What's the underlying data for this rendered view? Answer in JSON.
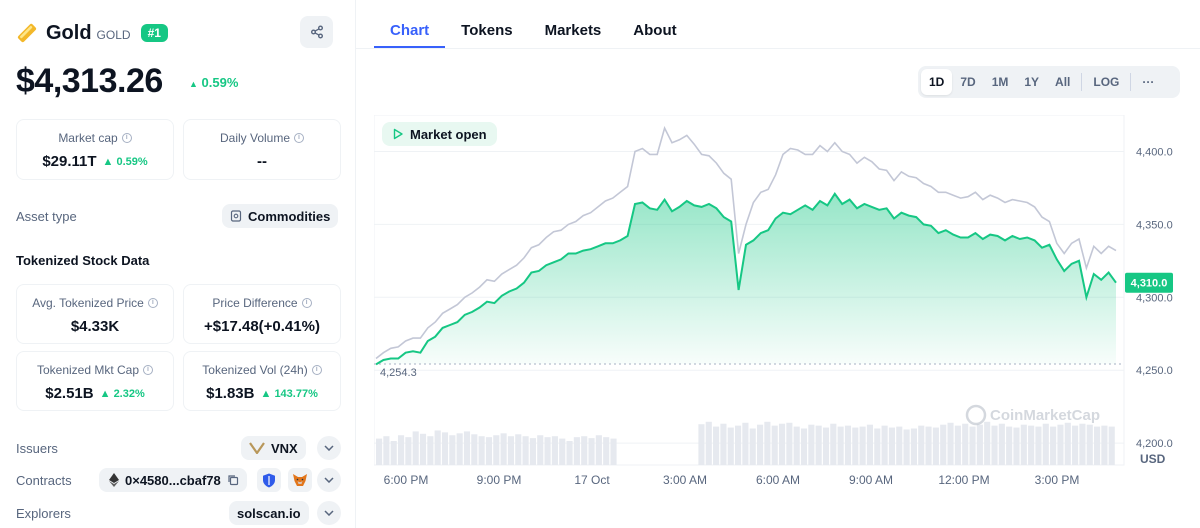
{
  "asset": {
    "name": "Gold",
    "symbol": "GOLD",
    "rank": "#1",
    "price": "$4,313.26",
    "price_change": "0.59%"
  },
  "stats": {
    "market_cap": {
      "label": "Market cap",
      "value": "$29.11T",
      "change": "0.59%"
    },
    "daily_volume": {
      "label": "Daily Volume",
      "value": "--"
    }
  },
  "asset_type": {
    "label": "Asset type",
    "value": "Commodities"
  },
  "tokenized": {
    "title": "Tokenized Stock Data",
    "avg_price": {
      "label": "Avg. Tokenized Price",
      "value": "$4.33K"
    },
    "price_diff": {
      "label": "Price Difference",
      "value": "+$17.48(+0.41%)"
    },
    "mkt_cap": {
      "label": "Tokenized Mkt Cap",
      "value": "$2.51B",
      "change": "2.32%"
    },
    "vol": {
      "label": "Tokenized Vol (24h)",
      "value": "$1.83B",
      "change": "143.77%"
    }
  },
  "issuers": {
    "label": "Issuers",
    "value": "VNX"
  },
  "contracts": {
    "label": "Contracts",
    "value": "0×4580...cbaf78"
  },
  "explorers": {
    "label": "Explorers",
    "value": "solscan.io"
  },
  "tabs": [
    "Chart",
    "Tokens",
    "Markets",
    "About"
  ],
  "ranges": [
    "1D",
    "7D",
    "1M",
    "1Y",
    "All",
    "LOG",
    "···"
  ],
  "market_status": "Market open",
  "watermark": "CoinMarketCap",
  "colors": {
    "up": "#16c784",
    "accent": "#3861fb",
    "compare_line": "#c3c7d6"
  },
  "chart_data": {
    "type": "line",
    "x_ticks": [
      "6:00 PM",
      "9:00 PM",
      "17 Oct",
      "3:00 AM",
      "6:00 AM",
      "9:00 AM",
      "12:00 PM",
      "3:00 PM"
    ],
    "y_ticks": [
      4200,
      4250,
      4300,
      4350,
      4400
    ],
    "y_tick_labels": [
      "4,200.0",
      "4,250.0",
      "4,300.0",
      "4,350.0",
      "4,400.0"
    ],
    "ylim": [
      4185,
      4425
    ],
    "ylabel": "USD",
    "open_label": "4,254.3",
    "open_value": 4254.3,
    "last_value_label": "4,310.0",
    "last_value": 4310.0,
    "series": [
      {
        "color": "#16c784",
        "x": [
          0,
          0.01,
          0.02,
          0.03,
          0.04,
          0.05,
          0.06,
          0.07,
          0.08,
          0.09,
          0.1,
          0.11,
          0.12,
          0.13,
          0.14,
          0.15,
          0.16,
          0.17,
          0.18,
          0.19,
          0.2,
          0.21,
          0.22,
          0.23,
          0.24,
          0.25,
          0.26,
          0.27,
          0.28,
          0.29,
          0.3,
          0.31,
          0.32,
          0.33,
          0.34,
          0.35,
          0.36,
          0.37,
          0.38,
          0.39,
          0.4,
          0.41,
          0.42,
          0.43,
          0.44,
          0.45,
          0.46,
          0.47,
          0.48,
          0.49,
          0.5,
          0.51,
          0.52,
          0.53,
          0.54,
          0.55,
          0.56,
          0.57,
          0.58,
          0.59,
          0.6,
          0.61,
          0.62,
          0.63,
          0.64,
          0.65,
          0.66,
          0.67,
          0.68,
          0.69,
          0.7,
          0.71,
          0.72,
          0.73,
          0.74,
          0.75,
          0.76,
          0.77,
          0.78,
          0.79,
          0.8,
          0.81,
          0.82,
          0.83,
          0.84,
          0.85,
          0.86,
          0.87,
          0.88,
          0.89,
          0.9,
          0.91,
          0.92,
          0.93,
          0.94,
          0.95,
          0.96,
          0.97,
          0.98,
          0.99,
          1.0
        ],
        "values": [
          4254,
          4257,
          4258,
          4258,
          4262,
          4263,
          4262,
          4270,
          4273,
          4279,
          4281,
          4283,
          4288,
          4290,
          4293,
          4297,
          4296,
          4301,
          4304,
          4306,
          4310,
          4317,
          4318,
          4322,
          4324,
          4326,
          4330,
          4330,
          4332,
          4333,
          4335,
          4337,
          4337,
          4339,
          4342,
          4364,
          4365,
          4361,
          4360,
          4367,
          4359,
          4362,
          4366,
          4363,
          4362,
          4364,
          4361,
          4355,
          4352,
          4305,
          4336,
          4339,
          4344,
          4346,
          4354,
          4358,
          4357,
          4360,
          4363,
          4360,
          4366,
          4363,
          4371,
          4364,
          4367,
          4361,
          4364,
          4362,
          4360,
          4361,
          4354,
          4358,
          4356,
          4355,
          4350,
          4349,
          4344,
          4346,
          4343,
          4341,
          4341,
          4344,
          4340,
          4343,
          4342,
          4339,
          4342,
          4340,
          4341,
          4339,
          4334,
          4336,
          4326,
          4318,
          4323,
          4325,
          4300,
          4316,
          4312,
          4317,
          4310
        ]
      },
      {
        "color": "#c3c7d6",
        "x": [
          0,
          0.01,
          0.02,
          0.03,
          0.04,
          0.05,
          0.06,
          0.07,
          0.08,
          0.09,
          0.1,
          0.11,
          0.12,
          0.13,
          0.14,
          0.15,
          0.16,
          0.17,
          0.18,
          0.19,
          0.2,
          0.21,
          0.22,
          0.23,
          0.24,
          0.25,
          0.26,
          0.27,
          0.28,
          0.29,
          0.3,
          0.31,
          0.32,
          0.33,
          0.34,
          0.35,
          0.36,
          0.37,
          0.38,
          0.39,
          0.4,
          0.41,
          0.42,
          0.43,
          0.44,
          0.45,
          0.46,
          0.47,
          0.48,
          0.49,
          0.5,
          0.51,
          0.52,
          0.53,
          0.54,
          0.55,
          0.56,
          0.57,
          0.58,
          0.59,
          0.6,
          0.61,
          0.62,
          0.63,
          0.64,
          0.65,
          0.66,
          0.67,
          0.68,
          0.69,
          0.7,
          0.71,
          0.72,
          0.73,
          0.74,
          0.75,
          0.76,
          0.77,
          0.78,
          0.79,
          0.8,
          0.81,
          0.82,
          0.83,
          0.84,
          0.85,
          0.86,
          0.87,
          0.88,
          0.89,
          0.9,
          0.91,
          0.92,
          0.93,
          0.94,
          0.95,
          0.96,
          0.97,
          0.98,
          0.99,
          1.0
        ],
        "values": [
          4258,
          4262,
          4265,
          4266,
          4270,
          4272,
          4272,
          4279,
          4283,
          4289,
          4292,
          4295,
          4300,
          4303,
          4307,
          4312,
          4311,
          4316,
          4319,
          4322,
          4327,
          4334,
          4336,
          4341,
          4345,
          4346,
          4350,
          4352,
          4356,
          4358,
          4362,
          4366,
          4368,
          4372,
          4376,
          4400,
          4402,
          4398,
          4398,
          4416,
          4406,
          4408,
          4411,
          4405,
          4398,
          4397,
          4392,
          4385,
          4381,
          4330,
          4350,
          4365,
          4372,
          4374,
          4384,
          4398,
          4402,
          4401,
          4398,
          4398,
          4404,
          4400,
          4406,
          4400,
          4398,
          4392,
          4396,
          4393,
          4388,
          4387,
          4380,
          4386,
          4383,
          4382,
          4378,
          4376,
          4372,
          4372,
          4370,
          4368,
          4369,
          4372,
          4367,
          4370,
          4368,
          4365,
          4367,
          4366,
          4365,
          4362,
          4355,
          4352,
          4337,
          4330,
          4337,
          4340,
          4320,
          4335,
          4330,
          4335,
          4332
        ]
      }
    ],
    "volume": [
      0.55,
      0.6,
      0.5,
      0.62,
      0.58,
      0.7,
      0.65,
      0.6,
      0.72,
      0.68,
      0.62,
      0.66,
      0.7,
      0.64,
      0.6,
      0.58,
      0.62,
      0.66,
      0.6,
      0.64,
      0.6,
      0.56,
      0.62,
      0.58,
      0.6,
      0.55,
      0.5,
      0.58,
      0.6,
      0.56,
      0.62,
      0.58,
      0.55,
      0,
      0,
      0,
      0,
      0,
      0,
      0,
      0,
      0,
      0,
      0,
      0.85,
      0.9,
      0.8,
      0.86,
      0.78,
      0.82,
      0.88,
      0.76,
      0.84,
      0.9,
      0.82,
      0.86,
      0.88,
      0.8,
      0.76,
      0.84,
      0.82,
      0.78,
      0.86,
      0.8,
      0.82,
      0.78,
      0.8,
      0.84,
      0.76,
      0.82,
      0.78,
      0.8,
      0.74,
      0.76,
      0.82,
      0.8,
      0.78,
      0.84,
      0.88,
      0.82,
      0.86,
      0.8,
      0.84,
      0.9,
      0.82,
      0.86,
      0.8,
      0.78,
      0.84,
      0.82,
      0.8,
      0.86,
      0.8,
      0.84,
      0.88,
      0.82,
      0.86,
      0.84,
      0.8,
      0.82,
      0.8
    ]
  }
}
